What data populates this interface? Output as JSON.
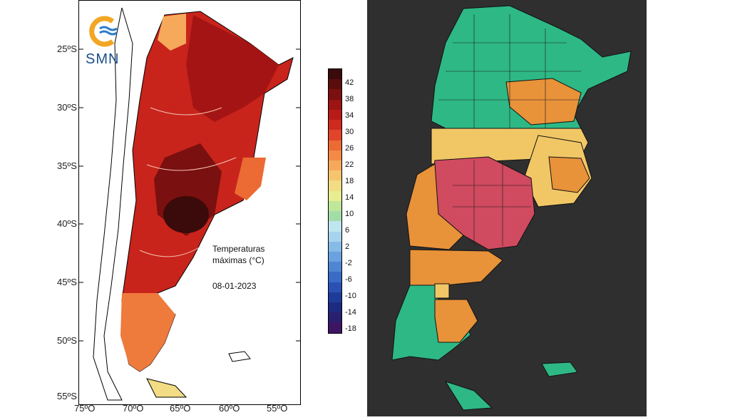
{
  "left_map": {
    "logo_text": "SMN",
    "annotation_line1": "Temperaturas",
    "annotation_line2": "máximas (°C)",
    "date": "08-01-2023",
    "lat_labels": [
      "25ºS",
      "30ºS",
      "35ºS",
      "40ºS",
      "45ºS",
      "50ºS",
      "55ºS"
    ],
    "lon_labels": [
      "75ºO",
      "70ºO",
      "65ºO",
      "60ºO",
      "55ºO"
    ],
    "colorbar": {
      "labels": [
        "42",
        "38",
        "34",
        "30",
        "26",
        "22",
        "18",
        "14",
        "10",
        "6",
        "2",
        "-2",
        "-6",
        "-10",
        "-14",
        "-18"
      ],
      "colors": [
        "#3b0a0a",
        "#5a0d0d",
        "#7a1010",
        "#9c1414",
        "#b81a1a",
        "#cf2a1e",
        "#e0452a",
        "#ec6a33",
        "#f38a45",
        "#f6a95a",
        "#f7c46e",
        "#f2dc84",
        "#e8ee8f",
        "#bfe79a",
        "#a4dca8",
        "#bfe6ef",
        "#a7d3ef",
        "#86bbe8",
        "#6aa1df",
        "#4f86d4",
        "#3a6bc7",
        "#2a52b4",
        "#1f3b9a",
        "#1c2a82",
        "#2a1f6f",
        "#3e1563"
      ]
    }
  },
  "right_map": {
    "colors": {
      "green": "#2eb886",
      "orange": "#e8923a",
      "yellow": "#f1c766",
      "red": "#d04a60",
      "background": "#2f2f30"
    }
  }
}
